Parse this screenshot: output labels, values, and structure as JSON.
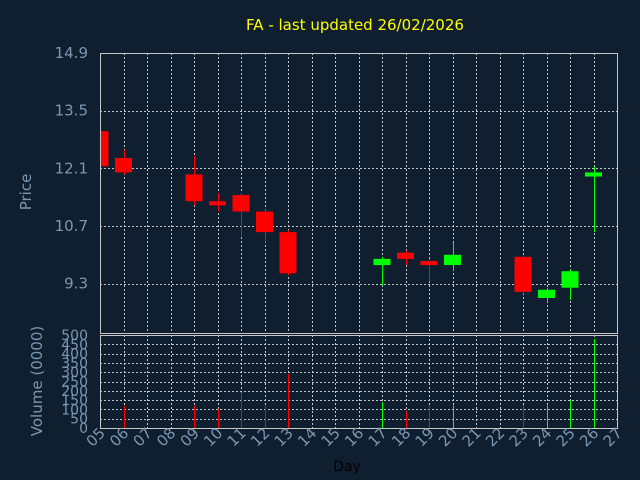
{
  "colors": {
    "background": "#0f1f30",
    "title": "#ffff00",
    "axis_text": "#7b97b3",
    "grid": "#c8c8c8",
    "frame": "#c8c8c8",
    "up": "#00ff00",
    "down": "#ff0000"
  },
  "chart_data": [
    {
      "type": "candlestick",
      "title": "FA - last updated 26/02/2026",
      "ylabel": "Price",
      "ylim": [
        8.1,
        14.9
      ],
      "yticks": [
        "14.9",
        "13.5",
        "12.1",
        "10.7",
        "9.3"
      ],
      "ytick_values": [
        14.9,
        13.5,
        12.1,
        10.7,
        9.3
      ],
      "xlim": [
        5,
        27
      ],
      "grid": true,
      "candles": [
        {
          "day": 5,
          "open": 13.0,
          "close": 12.15,
          "high": 13.1,
          "low": 12.1
        },
        {
          "day": 6,
          "open": 12.35,
          "close": 12.0,
          "high": 12.55,
          "low": 11.95
        },
        {
          "day": 9,
          "open": 11.95,
          "close": 11.3,
          "high": 12.4,
          "low": 11.2
        },
        {
          "day": 10,
          "open": 11.3,
          "close": 11.2,
          "high": 11.5,
          "low": 11.05
        },
        {
          "day": 11,
          "open": 11.45,
          "close": 11.05,
          "high": 11.5,
          "low": 10.45
        },
        {
          "day": 12,
          "open": 11.05,
          "close": 10.55,
          "high": 11.1,
          "low": 10.3
        },
        {
          "day": 13,
          "open": 10.55,
          "close": 9.55,
          "high": 10.6,
          "low": 9.5
        },
        {
          "day": 17,
          "open": 9.75,
          "close": 9.9,
          "high": 9.95,
          "low": 9.25
        },
        {
          "day": 18,
          "open": 10.05,
          "close": 9.9,
          "high": 10.1,
          "low": 9.75
        },
        {
          "day": 19,
          "open": 9.85,
          "close": 9.75,
          "high": 9.9,
          "low": 9.35
        },
        {
          "day": 20,
          "open": 9.75,
          "close": 10.0,
          "high": 10.3,
          "low": 9.6
        },
        {
          "day": 23,
          "open": 9.95,
          "close": 9.1,
          "high": 10.0,
          "low": 9.05
        },
        {
          "day": 24,
          "open": 8.95,
          "close": 9.15,
          "high": 9.2,
          "low": 8.85
        },
        {
          "day": 25,
          "open": 9.2,
          "close": 9.6,
          "high": 9.65,
          "low": 8.9
        },
        {
          "day": 26,
          "open": 11.9,
          "close": 12.0,
          "high": 12.15,
          "low": 10.55
        }
      ]
    },
    {
      "type": "bar",
      "ylabel": "Volume (0000)",
      "xlabel": "Day",
      "ylim": [
        0,
        500
      ],
      "yticks": [
        "500",
        "450",
        "400",
        "350",
        "300",
        "250",
        "200",
        "150",
        "100",
        "50",
        "0"
      ],
      "ytick_values": [
        500,
        450,
        400,
        350,
        300,
        250,
        200,
        150,
        100,
        50,
        0
      ],
      "xticks": [
        "05",
        "06",
        "07",
        "08",
        "09",
        "10",
        "11",
        "12",
        "13",
        "14",
        "15",
        "16",
        "17",
        "18",
        "19",
        "20",
        "21",
        "22",
        "23",
        "24",
        "25",
        "26",
        "27"
      ],
      "xtick_values": [
        5,
        6,
        7,
        8,
        9,
        10,
        11,
        12,
        13,
        14,
        15,
        16,
        17,
        18,
        19,
        20,
        21,
        22,
        23,
        24,
        25,
        26,
        27
      ],
      "bars": [
        {
          "day": 5,
          "value": 70,
          "direction": "down"
        },
        {
          "day": 6,
          "value": 120,
          "direction": "down"
        },
        {
          "day": 9,
          "value": 120,
          "direction": "down"
        },
        {
          "day": 10,
          "value": 100,
          "direction": "down"
        },
        {
          "day": 11,
          "value": 190,
          "direction": "down"
        },
        {
          "day": 12,
          "value": 120,
          "direction": "down"
        },
        {
          "day": 13,
          "value": 290,
          "direction": "down"
        },
        {
          "day": 17,
          "value": 140,
          "direction": "up"
        },
        {
          "day": 18,
          "value": 90,
          "direction": "down"
        },
        {
          "day": 19,
          "value": 120,
          "direction": "down"
        },
        {
          "day": 20,
          "value": 120,
          "direction": "up"
        },
        {
          "day": 23,
          "value": 120,
          "direction": "down"
        },
        {
          "day": 24,
          "value": 120,
          "direction": "up"
        },
        {
          "day": 25,
          "value": 150,
          "direction": "up"
        },
        {
          "day": 26,
          "value": 480,
          "direction": "up"
        }
      ]
    }
  ]
}
